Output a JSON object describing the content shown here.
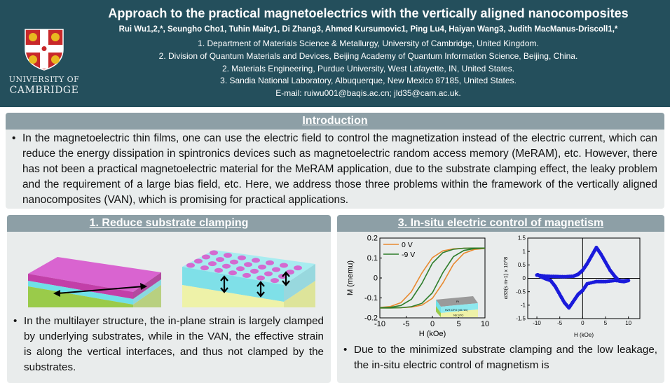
{
  "header": {
    "title": "Approach to the practical magnetoelectrics with the vertically aligned nanocomposites",
    "authors": "Rui Wu1,2,*, Seungho Cho1, Tuhin Maity1, Di Zhang3, Ahmed Kursumovic1, Ping Lu4, Haiyan Wang3, Judith MacManus-Driscoll1,*",
    "affiliations": [
      "1. Department of Materials Science & Metallurgy, University of Cambridge, United Kingdom.",
      "2. Division of Quantum Materials and Devices, Beijing Academy of Quantum Information Science, Beijing, China.",
      "2. Materials Engineering, Purdue University, West Lafayette, IN, United States.",
      "3. Sandia National Laboratory, Albuquerque, New Mexico 87185, United States.",
      "E-mail: ruiwu001@baqis.ac.cn; jld35@cam.ac.uk."
    ],
    "logo_line1": "UNIVERSITY OF",
    "logo_line2": "CAMBRIDGE",
    "bg_color": "#244f5c"
  },
  "intro": {
    "heading": "Introduction",
    "text": "In the magnetoelectric thin films,  one can use the electric field to control the magnetization instead of the electric current, which can reduce the energy dissipation in spintronics devices such as magnetoelectric random access memory (MeRAM), etc. However, there has not been a practical magnetoelectric material for the MeRAM application, due to the substrate clamping effect, the leaky problem and the requirement of a large bias field, etc. Here, we address those three problems within the framework of the vertically aligned nanocomposites (VAN), which is promising for practical applications."
  },
  "section1": {
    "heading": "1. Reduce substrate clamping",
    "text": "In the multilayer structure, the in-plane strain is largely clamped by underlying substrates, while in the VAN, the effective strain is along the vertical interfaces, and thus not clamped by the substrates."
  },
  "section3": {
    "heading": "3. In-situ electric control of magnetism",
    "text": "Due to the minimized substrate clamping and the low leakage, the in-situ electric control of magnetism is",
    "inset_labels": {
      "top": "Pt",
      "film": "HZT-CFO (40 nm)",
      "substrate": "Nb:STO"
    }
  },
  "chart_data": [
    {
      "type": "line",
      "xlabel": "H (kOe)",
      "ylabel": "M (memu)",
      "xlim": [
        -10,
        10
      ],
      "ylim": [
        -0.2,
        0.2
      ],
      "xticks": [
        -10,
        -5,
        0,
        5,
        10
      ],
      "yticks": [
        -0.2,
        -0.1,
        0,
        0.1,
        0.2
      ],
      "legend": "top-left",
      "x": [
        -10,
        -8,
        -6,
        -4,
        -2,
        0,
        2,
        4,
        6,
        8,
        10
      ],
      "series": [
        {
          "name": "0 V",
          "color": "#e8892e",
          "upper": [
            -0.148,
            -0.143,
            -0.124,
            -0.069,
            0.025,
            0.102,
            0.136,
            0.146,
            0.149,
            0.15,
            0.15
          ],
          "lower": [
            -0.15,
            -0.15,
            -0.149,
            -0.146,
            -0.136,
            -0.102,
            -0.025,
            0.069,
            0.124,
            0.143,
            0.148
          ]
        },
        {
          "name": "-9 V",
          "color": "#2e7d2a",
          "upper": [
            -0.149,
            -0.147,
            -0.138,
            -0.107,
            -0.027,
            0.074,
            0.127,
            0.144,
            0.149,
            0.15,
            0.15
          ],
          "lower": [
            -0.15,
            -0.15,
            -0.149,
            -0.144,
            -0.127,
            -0.074,
            0.027,
            0.107,
            0.138,
            0.147,
            0.149
          ]
        }
      ]
    },
    {
      "type": "scatter",
      "xlabel": "H (kOe)",
      "ylabel": "α33(s m-1) x 10^8",
      "xlim": [
        -12,
        12.5
      ],
      "ylim": [
        -1.5,
        1.5
      ],
      "xticks": [
        -10,
        -5,
        0,
        5,
        10
      ],
      "yticks": [
        -1.5,
        -1,
        -0.5,
        0,
        0.5,
        1,
        1.5
      ],
      "color": "#1a1adb",
      "points": [
        [
          -10,
          0.12
        ],
        [
          -8,
          0.08
        ],
        [
          -6,
          0.07
        ],
        [
          -4,
          0.06
        ],
        [
          -2,
          0.08
        ],
        [
          -1,
          0.15
        ],
        [
          0,
          0.3
        ],
        [
          1,
          0.55
        ],
        [
          2,
          0.85
        ],
        [
          3,
          1.15
        ],
        [
          4,
          0.9
        ],
        [
          5,
          0.6
        ],
        [
          6,
          0.3
        ],
        [
          7,
          0.08
        ],
        [
          8,
          -0.1
        ],
        [
          9,
          -0.12
        ],
        [
          10,
          -0.08
        ],
        [
          9,
          -0.1
        ],
        [
          7,
          -0.08
        ],
        [
          5,
          -0.12
        ],
        [
          3,
          -0.12
        ],
        [
          1,
          -0.2
        ],
        [
          0,
          -0.45
        ],
        [
          -1,
          -0.6
        ],
        [
          -2,
          -0.85
        ],
        [
          -3,
          -1.1
        ],
        [
          -4,
          -0.9
        ],
        [
          -5,
          -0.6
        ],
        [
          -6,
          -0.3
        ],
        [
          -7,
          -0.08
        ],
        [
          -8,
          -0.02
        ],
        [
          -9,
          0.05
        ],
        [
          -10,
          0.15
        ]
      ]
    }
  ]
}
